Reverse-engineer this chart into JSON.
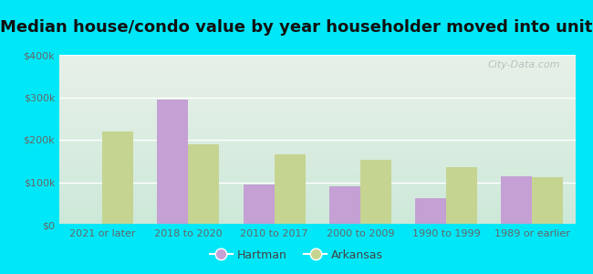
{
  "title": "Median house/condo value by year householder moved into unit",
  "categories": [
    "2021 or later",
    "2018 to 2020",
    "2010 to 2017",
    "2000 to 2009",
    "1990 to 1999",
    "1989 or earlier"
  ],
  "hartman": [
    null,
    295000,
    95000,
    90000,
    62000,
    115000
  ],
  "arkansas": [
    220000,
    190000,
    165000,
    152000,
    135000,
    112000
  ],
  "hartman_color": "#c4a0d4",
  "arkansas_color": "#c5d490",
  "background_outer": "#00e8f8",
  "grad_top": "#e8f0e8",
  "grad_bottom": "#cce8d8",
  "ylim": [
    0,
    400000
  ],
  "yticks": [
    0,
    100000,
    200000,
    300000,
    400000
  ],
  "ytick_labels": [
    "$0",
    "$100k",
    "$200k",
    "$300k",
    "$400k"
  ],
  "bar_width": 0.36,
  "watermark": "City-Data.com",
  "legend_hartman": "Hartman",
  "legend_arkansas": "Arkansas",
  "title_fontsize": 13,
  "tick_fontsize": 8,
  "grid_color": "#ffffff"
}
